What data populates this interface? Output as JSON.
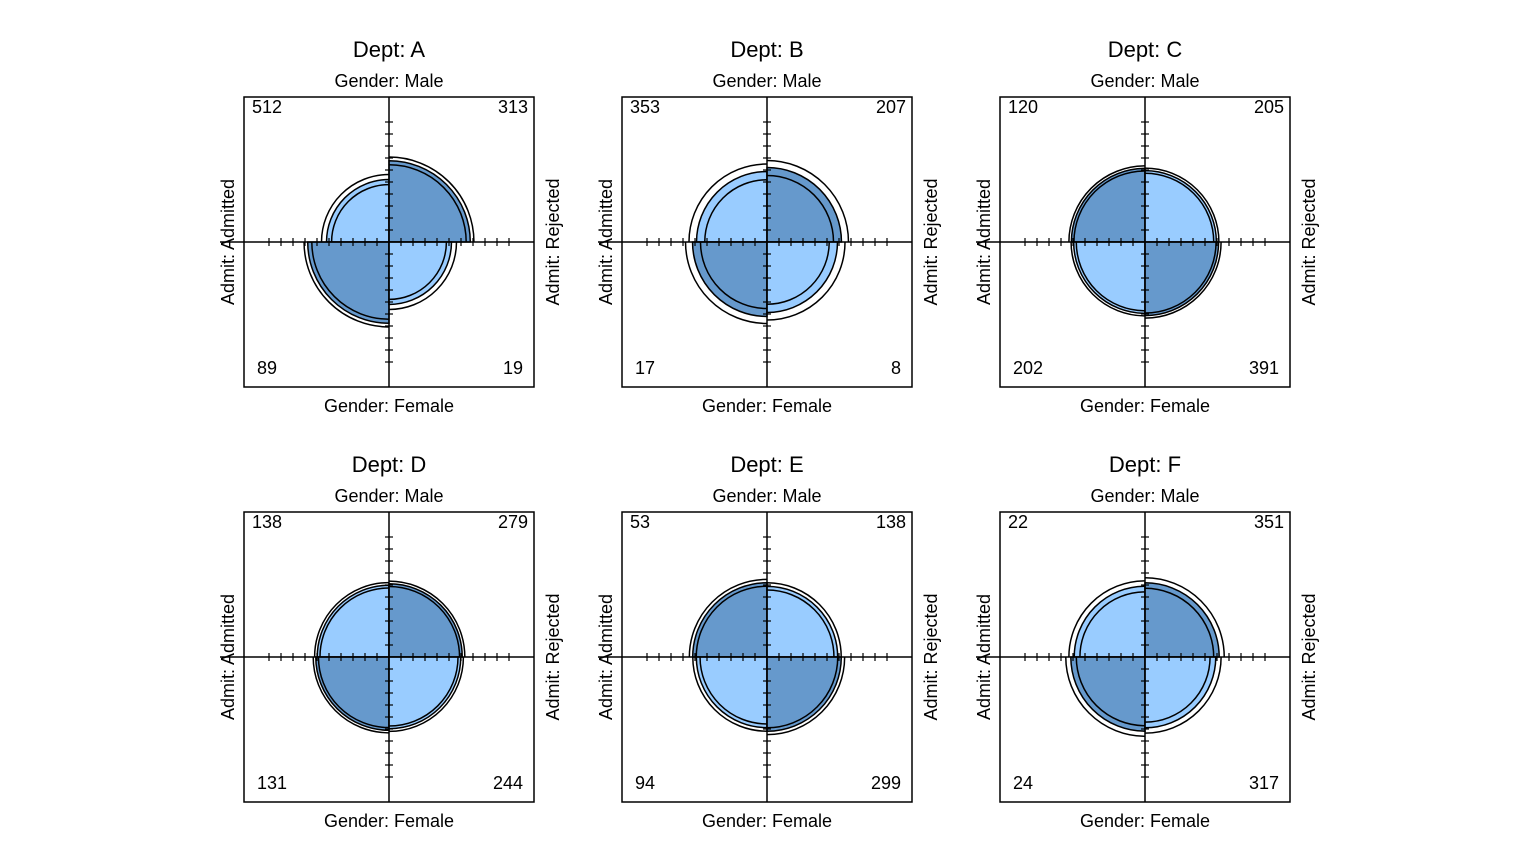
{
  "chart_data": {
    "type": "fourfold",
    "row_variable": "Gender",
    "col_variable": "Admit",
    "top_label": "Gender: Male",
    "bottom_label": "Gender: Female",
    "left_label": "Admit: Admitted",
    "right_label": "Admit: Rejected",
    "colors": {
      "light": "#99ccff",
      "dark": "#6699cc",
      "stroke": "#000000"
    },
    "panels": [
      {
        "title": "Dept: A",
        "male_admitted": 512,
        "male_rejected": 313,
        "female_admitted": 89,
        "female_rejected": 19
      },
      {
        "title": "Dept: B",
        "male_admitted": 353,
        "male_rejected": 207,
        "female_admitted": 17,
        "female_rejected": 8
      },
      {
        "title": "Dept: C",
        "male_admitted": 120,
        "male_rejected": 205,
        "female_admitted": 202,
        "female_rejected": 391
      },
      {
        "title": "Dept: D",
        "male_admitted": 138,
        "male_rejected": 279,
        "female_admitted": 131,
        "female_rejected": 244
      },
      {
        "title": "Dept: E",
        "male_admitted": 53,
        "male_rejected": 138,
        "female_admitted": 94,
        "female_rejected": 299
      },
      {
        "title": "Dept: F",
        "male_admitted": 22,
        "male_rejected": 351,
        "female_admitted": 24,
        "female_rejected": 317
      }
    ]
  }
}
